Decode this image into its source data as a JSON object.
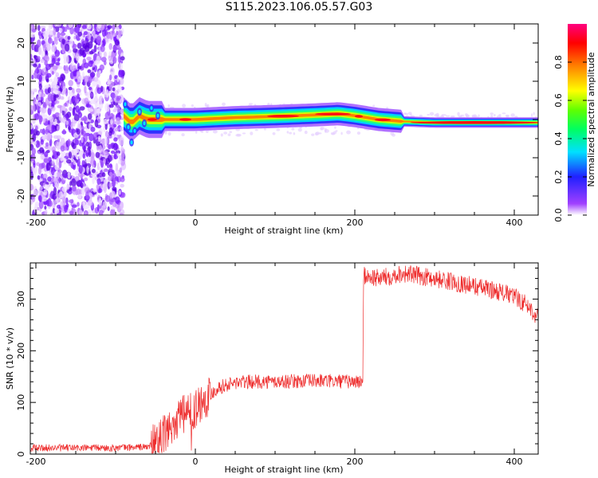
{
  "page": {
    "title": "S115.2023.106.05.57.G03"
  },
  "colors": {
    "snr_line": "#ee2e2e",
    "axis": "#000000"
  },
  "chart_data": [
    {
      "type": "heatmap",
      "xlabel": "Height of straight line (km)",
      "ylabel": "Frequency (Hz)",
      "xlim": [
        -207,
        430
      ],
      "ylim": [
        -25,
        25
      ],
      "xticks": [
        -200,
        0,
        200,
        400
      ],
      "yticks": [
        -20,
        -10,
        0,
        10,
        20
      ],
      "colorbar": {
        "label": "Normalized spectral amplitude",
        "range": [
          0,
          1
        ],
        "ticks": [
          0.0,
          0.2,
          0.4,
          0.6,
          0.8
        ],
        "colormap": "rainbow (white-purple-blue-cyan-green-yellow-red-magenta)"
      },
      "center_frequency": [
        [
          -90,
          1
        ],
        [
          -85,
          0
        ],
        [
          -80,
          -1
        ],
        [
          -75,
          0
        ],
        [
          -70,
          1
        ],
        [
          -60,
          0
        ],
        [
          -50,
          0
        ],
        [
          -40,
          0
        ],
        [
          0,
          0
        ],
        [
          50,
          0.5
        ],
        [
          100,
          0.8
        ],
        [
          150,
          1.2
        ],
        [
          180,
          1.5
        ],
        [
          200,
          1
        ],
        [
          230,
          0
        ],
        [
          260,
          -0.5
        ],
        [
          300,
          -0.8
        ],
        [
          430,
          -0.8
        ]
      ],
      "noise_region_x": [
        -207,
        -90
      ]
    },
    {
      "type": "line",
      "xlabel": "Height of straight line (km)",
      "ylabel": "SNR (10 * v/v)",
      "xlim": [
        -207,
        430
      ],
      "ylim": [
        0,
        370
      ],
      "xticks": [
        -200,
        0,
        200,
        400
      ],
      "yticks": [
        0,
        100,
        200,
        300
      ],
      "series": [
        {
          "x": [
            -207,
            -150,
            -100,
            -60,
            -50,
            -40,
            -30,
            -20,
            -10,
            0,
            10,
            20,
            30,
            50,
            70,
            100,
            150,
            200,
            210,
            211,
            230,
            260,
            300,
            350,
            380,
            400,
            415,
            430
          ],
          "y": [
            12,
            12,
            12,
            14,
            20,
            35,
            55,
            70,
            80,
            90,
            105,
            118,
            130,
            138,
            140,
            140,
            142,
            140,
            140,
            345,
            340,
            350,
            340,
            325,
            315,
            305,
            290,
            265
          ]
        }
      ]
    }
  ]
}
